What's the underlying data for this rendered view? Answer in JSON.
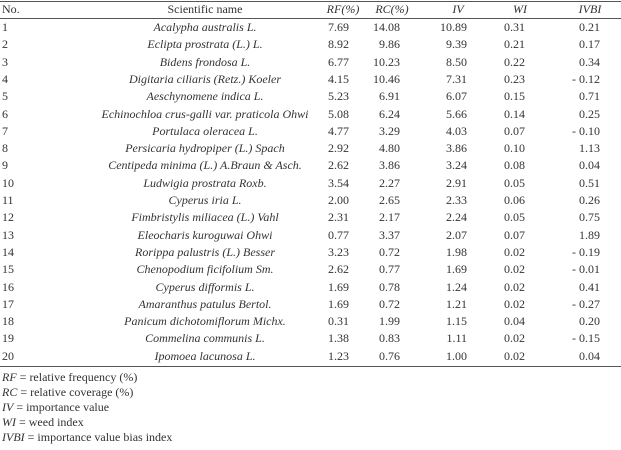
{
  "table": {
    "header": [
      "No.",
      "Scientific name",
      "RF(%)",
      "RC(%)",
      "IV",
      "WI",
      "IVBI"
    ],
    "rows": [
      [
        "1",
        "Acalypha australis L.",
        "7.69",
        "14.08",
        "10.89",
        "0.31",
        "0.21"
      ],
      [
        "2",
        "Eclipta prostrata (L.) L.",
        "8.92",
        "9.86",
        "9.39",
        "0.21",
        "0.17"
      ],
      [
        "3",
        "Bidens frondosa L.",
        "6.77",
        "10.23",
        "8.50",
        "0.22",
        "0.34"
      ],
      [
        "4",
        "Digitaria ciliaris (Retz.) Koeler",
        "4.15",
        "10.46",
        "7.31",
        "0.23",
        "- 0.12"
      ],
      [
        "5",
        "Aeschynomene indica L.",
        "5.23",
        "6.91",
        "6.07",
        "0.15",
        "0.71"
      ],
      [
        "6",
        "Echinochloa crus-galli var. praticola Ohwi",
        "5.08",
        "6.24",
        "5.66",
        "0.14",
        "0.25"
      ],
      [
        "7",
        "Portulaca oleracea L.",
        "4.77",
        "3.29",
        "4.03",
        "0.07",
        "- 0.10"
      ],
      [
        "8",
        "Persicaria hydropiper (L.) Spach",
        "2.92",
        "4.80",
        "3.86",
        "0.10",
        "1.13"
      ],
      [
        "9",
        "Centipeda minima (L.) A.Braun & Asch.",
        "2.62",
        "3.86",
        "3.24",
        "0.08",
        "0.04"
      ],
      [
        "10",
        "Ludwigia prostrata Roxb.",
        "3.54",
        "2.27",
        "2.91",
        "0.05",
        "0.51"
      ],
      [
        "11",
        "Cyperus iria L.",
        "2.00",
        "2.65",
        "2.33",
        "0.06",
        "0.26"
      ],
      [
        "12",
        "Fimbristylis miliacea (L.) Vahl",
        "2.31",
        "2.17",
        "2.24",
        "0.05",
        "0.75"
      ],
      [
        "13",
        "Eleocharis kuroguwai Ohwi",
        "0.77",
        "3.37",
        "2.07",
        "0.07",
        "1.89"
      ],
      [
        "14",
        "Rorippa palustris (L.) Besser",
        "3.23",
        "0.72",
        "1.98",
        "0.02",
        "- 0.19"
      ],
      [
        "15",
        "Chenopodium ficifolium Sm.",
        "2.62",
        "0.77",
        "1.69",
        "0.02",
        "- 0.01"
      ],
      [
        "16",
        "Cyperus difformis L.",
        "1.69",
        "0.78",
        "1.24",
        "0.02",
        "0.41"
      ],
      [
        "17",
        "Amaranthus patulus Bertol.",
        "1.69",
        "0.72",
        "1.21",
        "0.02",
        "- 0.27"
      ],
      [
        "18",
        "Panicum dichotomiflorum Michx.",
        "0.31",
        "1.99",
        "1.15",
        "0.04",
        "0.20"
      ],
      [
        "19",
        "Commelina communis L.",
        "1.38",
        "0.83",
        "1.11",
        "0.02",
        "- 0.15"
      ],
      [
        "20",
        "Ipomoea lacunosa L.",
        "1.23",
        "0.76",
        "1.00",
        "0.02",
        "0.04"
      ]
    ]
  },
  "notes": [
    {
      "abbr": "RF",
      "text": "= relative frequency (%)"
    },
    {
      "abbr": "RC",
      "text": "= relative coverage (%)"
    },
    {
      "abbr": "IV",
      "text": "= importance value"
    },
    {
      "abbr": "WI",
      "text": "= weed index"
    },
    {
      "abbr": "IVBI",
      "text": "= importance value bias index"
    }
  ]
}
